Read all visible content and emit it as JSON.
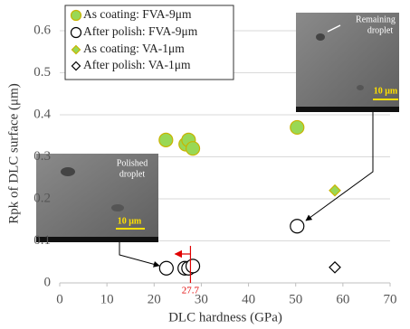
{
  "chart_data": {
    "type": "scatter",
    "xlabel": "DLC hardness (GPa)",
    "ylabel": "Rpk of  DLC surface (μm)",
    "xlim": [
      0,
      70
    ],
    "xticks": [
      0,
      10,
      20,
      30,
      40,
      50,
      60,
      70
    ],
    "ylim": [
      0,
      0.6
    ],
    "yticks": [
      0,
      0.1,
      0.2,
      0.3,
      0.4,
      0.5,
      0.6
    ],
    "grid": true,
    "legend": "upper left",
    "series": [
      {
        "name": "As coating: FVA-9μm",
        "marker": "circle",
        "color": "#99d855",
        "edgecolor": "#c8b400",
        "x": [
          22.5,
          26.7,
          27.3,
          28.2,
          50.3
        ],
        "values": [
          0.34,
          0.33,
          0.34,
          0.32,
          0.37
        ]
      },
      {
        "name": "After polish: FVA-9μm",
        "marker": "circle",
        "color": "#ffffff",
        "edgecolor": "#000000",
        "x": [
          22.6,
          26.5,
          27.3,
          28.2,
          50.3
        ],
        "values": [
          0.035,
          0.035,
          0.035,
          0.04,
          0.135
        ]
      },
      {
        "name": "As coating: VA-1μm",
        "marker": "diamond",
        "color": "#99d855",
        "edgecolor": "#c8b400",
        "x": [
          58.3
        ],
        "values": [
          0.22
        ]
      },
      {
        "name": "After polish: VA-1μm",
        "marker": "diamond",
        "color": "#ffffff",
        "edgecolor": "#000000",
        "x": [
          58.3
        ],
        "values": [
          0.037
        ]
      }
    ],
    "reference_line": {
      "x": 27.7,
      "color": "#e00000"
    },
    "insets": [
      {
        "label_lines": [
          "Polished",
          "droplet"
        ],
        "scale": "10 μm"
      },
      {
        "label_lines": [
          "Remaining",
          "droplet"
        ],
        "scale": "10 μm"
      }
    ]
  }
}
